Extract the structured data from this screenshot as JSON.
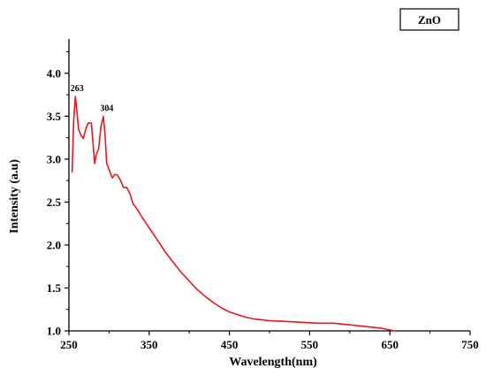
{
  "chart_data": {
    "type": "line",
    "title": "",
    "xlabel": "Wavelength(nm)",
    "ylabel": "Intensity (a.u)",
    "xlim": [
      250,
      750
    ],
    "ylim": [
      1.0,
      4.4
    ],
    "xticks": [
      250,
      350,
      450,
      550,
      650,
      750
    ],
    "xtick_labels": [
      "250",
      "350",
      "450",
      "550",
      "650",
      "750"
    ],
    "yticks": [
      1.0,
      1.5,
      2.0,
      2.5,
      3.0,
      3.5,
      4.0
    ],
    "ytick_labels": [
      "1.0",
      "1.5",
      "2.0",
      "2.5",
      "3.0",
      "3.5",
      "4.0"
    ],
    "grid": false,
    "legend_position": "top-right",
    "series": [
      {
        "name": "ZnO",
        "color": "#e8171b",
        "x": [
          254,
          256,
          258,
          260,
          262,
          265,
          268,
          271,
          274,
          278,
          282,
          284,
          287,
          290,
          293,
          295,
          297,
          300,
          304,
          307,
          310,
          314,
          318,
          322,
          326,
          330,
          335,
          340,
          350,
          360,
          370,
          380,
          390,
          400,
          410,
          420,
          430,
          440,
          450,
          460,
          470,
          480,
          490,
          500,
          520,
          540,
          560,
          580,
          600,
          620,
          640,
          656
        ],
        "y": [
          2.85,
          3.45,
          3.73,
          3.55,
          3.35,
          3.28,
          3.24,
          3.35,
          3.42,
          3.42,
          2.95,
          3.05,
          3.12,
          3.38,
          3.5,
          3.28,
          2.95,
          2.88,
          2.78,
          2.82,
          2.82,
          2.76,
          2.67,
          2.67,
          2.6,
          2.48,
          2.42,
          2.34,
          2.2,
          2.06,
          1.92,
          1.8,
          1.68,
          1.58,
          1.48,
          1.4,
          1.33,
          1.27,
          1.22,
          1.19,
          1.16,
          1.14,
          1.13,
          1.12,
          1.11,
          1.1,
          1.09,
          1.09,
          1.07,
          1.05,
          1.03,
          1.0
        ]
      }
    ],
    "annotations": [
      {
        "text": "263",
        "x": 258,
        "y": 3.73
      },
      {
        "text": "304",
        "x": 295,
        "y": 3.5
      }
    ],
    "legend": {
      "label": "ZnO"
    }
  }
}
